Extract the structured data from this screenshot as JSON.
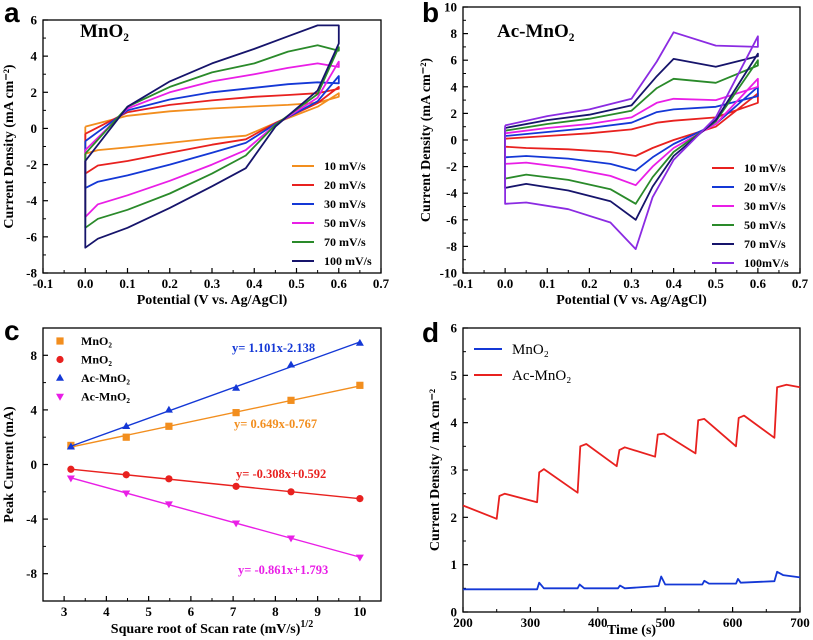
{
  "chart_data": [
    {
      "panel": "a",
      "type": "line",
      "title": "MnO₂",
      "xlabel": "Potential (V vs. Ag/AgCl)",
      "ylabel": "Current Density (mA cm⁻²)",
      "xlim": [
        -0.1,
        0.7
      ],
      "ylim": [
        -8,
        6
      ],
      "xticks": [
        "-0.1",
        "0.0",
        "0.1",
        "0.2",
        "0.3",
        "0.4",
        "0.5",
        "0.6",
        "0.7"
      ],
      "yticks": [
        "-8",
        "-6",
        "-4",
        "-2",
        "0",
        "2",
        "4",
        "6"
      ],
      "legend_position": "bottom-right",
      "series": [
        {
          "name": "10 mV/s",
          "color": "#f28e1e",
          "x": [
            0,
            0.1,
            0.2,
            0.3,
            0.4,
            0.48,
            0.55,
            0.6,
            0.6,
            0.55,
            0.45,
            0.38,
            0.3,
            0.2,
            0.1,
            0.03,
            0,
            0
          ],
          "y": [
            0.1,
            0.7,
            0.95,
            1.1,
            1.22,
            1.3,
            1.42,
            1.75,
            1.95,
            1.2,
            0.3,
            -0.4,
            -0.55,
            -0.8,
            -1.05,
            -1.2,
            -1.4,
            0.1
          ]
        },
        {
          "name": "20 mV/s",
          "color": "#e8211f",
          "x": [
            0,
            0.1,
            0.2,
            0.3,
            0.4,
            0.48,
            0.55,
            0.6,
            0.6,
            0.55,
            0.45,
            0.38,
            0.3,
            0.2,
            0.1,
            0.03,
            0,
            0
          ],
          "y": [
            -0.3,
            0.9,
            1.3,
            1.55,
            1.75,
            1.85,
            1.95,
            2.2,
            2.3,
            1.4,
            0.3,
            -0.6,
            -0.9,
            -1.35,
            -1.8,
            -2.05,
            -2.5,
            -0.3
          ]
        },
        {
          "name": "30 mV/s",
          "color": "#1438d6",
          "x": [
            0,
            0.1,
            0.2,
            0.3,
            0.4,
            0.48,
            0.55,
            0.6,
            0.6,
            0.55,
            0.45,
            0.38,
            0.3,
            0.2,
            0.1,
            0.03,
            0,
            0
          ],
          "y": [
            -0.7,
            1.0,
            1.6,
            2.0,
            2.25,
            2.45,
            2.55,
            2.5,
            2.9,
            1.5,
            0.25,
            -0.8,
            -1.35,
            -2.0,
            -2.6,
            -2.95,
            -3.3,
            -0.7
          ]
        },
        {
          "name": "50 mV/s",
          "color": "#e91ee6",
          "x": [
            0,
            0.1,
            0.2,
            0.3,
            0.4,
            0.48,
            0.55,
            0.6,
            0.6,
            0.55,
            0.45,
            0.38,
            0.3,
            0.2,
            0.1,
            0.03,
            0,
            0
          ],
          "y": [
            -1.2,
            1.1,
            2.0,
            2.6,
            3.0,
            3.35,
            3.6,
            3.4,
            3.7,
            1.7,
            0.2,
            -1.2,
            -2.0,
            -2.9,
            -3.7,
            -4.2,
            -4.9,
            -1.2
          ]
        },
        {
          "name": "70 mV/s",
          "color": "#2a8a2a",
          "x": [
            0,
            0.1,
            0.2,
            0.3,
            0.4,
            0.48,
            0.55,
            0.6,
            0.6,
            0.55,
            0.45,
            0.38,
            0.3,
            0.2,
            0.1,
            0.03,
            0,
            0
          ],
          "y": [
            -1.4,
            1.2,
            2.3,
            3.1,
            3.6,
            4.25,
            4.6,
            4.3,
            4.5,
            1.9,
            0.2,
            -1.5,
            -2.5,
            -3.6,
            -4.5,
            -5.0,
            -5.5,
            -1.4
          ]
        },
        {
          "name": "100 mV/s",
          "color": "#16146b",
          "x": [
            0,
            0.1,
            0.2,
            0.3,
            0.4,
            0.48,
            0.55,
            0.6,
            0.6,
            0.55,
            0.45,
            0.38,
            0.3,
            0.2,
            0.1,
            0.03,
            0,
            0
          ],
          "y": [
            -1.8,
            1.2,
            2.6,
            3.6,
            4.4,
            5.1,
            5.7,
            5.7,
            4.7,
            2.1,
            0.1,
            -2.2,
            -3.2,
            -4.4,
            -5.5,
            -6.1,
            -6.6,
            -1.8
          ]
        }
      ]
    },
    {
      "panel": "b",
      "type": "line",
      "title": "Ac-MnO₂",
      "xlabel": "Potential (V vs. Ag/AgCl)",
      "ylabel": "Current Density (mA cm⁻²)",
      "xlim": [
        -0.1,
        0.7
      ],
      "ylim": [
        -10,
        10
      ],
      "xticks": [
        "-0.1",
        "0.0",
        "0.1",
        "0.2",
        "0.3",
        "0.4",
        "0.5",
        "0.6",
        "0.7"
      ],
      "yticks": [
        "-10",
        "-8",
        "-6",
        "-4",
        "-2",
        "0",
        "2",
        "4",
        "6",
        "8",
        "10"
      ],
      "legend_position": "bottom-right",
      "series": [
        {
          "name": "10 mV/s",
          "color": "#e8211f",
          "x": [
            0,
            0.1,
            0.2,
            0.3,
            0.36,
            0.4,
            0.5,
            0.6,
            0.6,
            0.5,
            0.4,
            0.35,
            0.31,
            0.25,
            0.15,
            0.05,
            0,
            0
          ],
          "y": [
            0.1,
            0.3,
            0.5,
            0.8,
            1.3,
            1.45,
            1.7,
            2.8,
            3.5,
            1.0,
            0.0,
            -0.6,
            -1.2,
            -0.9,
            -0.7,
            -0.6,
            -0.5,
            0.1
          ]
        },
        {
          "name": "20 mV/s",
          "color": "#1438d6",
          "x": [
            0,
            0.1,
            0.2,
            0.3,
            0.36,
            0.4,
            0.5,
            0.6,
            0.6,
            0.5,
            0.4,
            0.35,
            0.31,
            0.25,
            0.15,
            0.05,
            0,
            0
          ],
          "y": [
            0.3,
            0.6,
            0.9,
            1.3,
            2.1,
            2.3,
            2.5,
            3.3,
            4.0,
            1.2,
            -0.3,
            -1.3,
            -2.3,
            -1.8,
            -1.4,
            -1.2,
            -1.3,
            0.3
          ]
        },
        {
          "name": "30 mV/s",
          "color": "#e91ee6",
          "x": [
            0,
            0.1,
            0.2,
            0.3,
            0.36,
            0.4,
            0.5,
            0.6,
            0.6,
            0.5,
            0.4,
            0.35,
            0.31,
            0.25,
            0.15,
            0.05,
            0,
            0
          ],
          "y": [
            0.5,
            0.9,
            1.2,
            1.7,
            2.8,
            3.1,
            3.0,
            4.0,
            4.6,
            1.2,
            -0.6,
            -2.0,
            -3.4,
            -2.7,
            -2.1,
            -1.7,
            -1.8,
            0.5
          ]
        },
        {
          "name": "50 mV/s",
          "color": "#2a8a2a",
          "x": [
            0,
            0.1,
            0.2,
            0.3,
            0.36,
            0.4,
            0.5,
            0.6,
            0.6,
            0.5,
            0.4,
            0.35,
            0.31,
            0.25,
            0.15,
            0.05,
            0,
            0
          ],
          "y": [
            0.7,
            1.2,
            1.6,
            2.2,
            3.9,
            4.6,
            4.3,
            5.6,
            6.0,
            1.4,
            -0.9,
            -2.8,
            -4.8,
            -3.7,
            -3.0,
            -2.6,
            -2.9,
            0.7
          ]
        },
        {
          "name": "70 mV/s",
          "color": "#16146b",
          "x": [
            0,
            0.1,
            0.2,
            0.3,
            0.36,
            0.4,
            0.5,
            0.6,
            0.6,
            0.5,
            0.4,
            0.35,
            0.31,
            0.25,
            0.15,
            0.05,
            0,
            0
          ],
          "y": [
            0.9,
            1.5,
            1.9,
            2.6,
            4.8,
            6.1,
            5.5,
            6.3,
            6.5,
            1.5,
            -1.2,
            -3.5,
            -6.0,
            -4.6,
            -3.8,
            -3.3,
            -3.6,
            0.9
          ]
        },
        {
          "name": "100mV/s",
          "color": "#8b2be2",
          "x": [
            0,
            0.1,
            0.2,
            0.3,
            0.36,
            0.4,
            0.5,
            0.6,
            0.6,
            0.5,
            0.4,
            0.35,
            0.31,
            0.25,
            0.15,
            0.05,
            0,
            0
          ],
          "y": [
            1.1,
            1.8,
            2.3,
            3.1,
            5.9,
            8.1,
            7.1,
            7.0,
            7.8,
            1.7,
            -1.5,
            -4.3,
            -8.2,
            -6.2,
            -5.2,
            -4.7,
            -4.8,
            1.1
          ]
        }
      ]
    },
    {
      "panel": "c",
      "type": "scatter",
      "xlabel": "Square root of Scan rate (mV/s)",
      "xlabel_sup": "1/2",
      "ylabel": "Peak Current (mA)",
      "xlim": [
        2.5,
        10.5
      ],
      "ylim": [
        -10,
        10
      ],
      "xticks": [
        "3",
        "4",
        "5",
        "6",
        "7",
        "8",
        "9",
        "10"
      ],
      "yticks": [
        "-8",
        "-4",
        "0",
        "4",
        "8"
      ],
      "legend_position": "top-left",
      "series": [
        {
          "name": "MnO₂",
          "marker": "square",
          "color": "#f28e1e",
          "x": [
            3.16,
            4.47,
            5.48,
            7.07,
            8.37,
            10.0
          ],
          "y": [
            1.4,
            2.0,
            2.8,
            3.8,
            4.7,
            5.8
          ],
          "fit": "y= 0.649x-0.767"
        },
        {
          "name": "MnO₂",
          "marker": "circle",
          "color": "#e8211f",
          "x": [
            3.16,
            4.47,
            5.48,
            7.07,
            8.37,
            10.0
          ],
          "y": [
            -0.35,
            -0.75,
            -1.05,
            -1.6,
            -2.0,
            -2.5
          ],
          "fit": "y= -0.308x+0.592"
        },
        {
          "name": "Ac-MnO₂",
          "marker": "triangle-up",
          "color": "#1438d6",
          "x": [
            3.16,
            4.47,
            5.48,
            7.07,
            8.37,
            10.0
          ],
          "y": [
            1.3,
            2.8,
            4.0,
            5.6,
            7.3,
            8.9
          ],
          "fit": "y= 1.101x-2.138"
        },
        {
          "name": "Ac-MnO₂",
          "marker": "triangle-down",
          "color": "#e91ee6",
          "x": [
            3.16,
            4.47,
            5.48,
            7.07,
            8.37,
            10.0
          ],
          "y": [
            -1.0,
            -2.1,
            -2.9,
            -4.3,
            -5.4,
            -6.8
          ],
          "fit": "y= -0.861x+1.793"
        }
      ]
    },
    {
      "panel": "d",
      "type": "line",
      "xlabel": "Time (s)",
      "ylabel": "Current Density / mA cm⁻²",
      "xlim": [
        200,
        700
      ],
      "ylim": [
        0,
        6
      ],
      "xticks": [
        "200",
        "300",
        "400",
        "500",
        "600",
        "700"
      ],
      "yticks": [
        "0",
        "1",
        "2",
        "3",
        "4",
        "5",
        "6"
      ],
      "legend_position": "top-left",
      "series": [
        {
          "name": "MnO₂",
          "color": "#1438d6",
          "x": [
            200,
            250,
            300,
            310,
            313,
            320,
            370,
            373,
            380,
            430,
            433,
            440,
            490,
            494,
            500,
            555,
            558,
            565,
            605,
            608,
            612,
            662,
            666,
            675,
            700
          ],
          "y": [
            0.48,
            0.48,
            0.48,
            0.48,
            0.62,
            0.5,
            0.5,
            0.58,
            0.5,
            0.5,
            0.56,
            0.5,
            0.55,
            0.75,
            0.58,
            0.58,
            0.66,
            0.6,
            0.6,
            0.7,
            0.62,
            0.65,
            0.85,
            0.78,
            0.73
          ]
        },
        {
          "name": "Ac-MnO₂",
          "color": "#e8211f",
          "x": [
            200,
            250,
            254,
            262,
            310,
            313,
            320,
            370,
            374,
            383,
            428,
            432,
            440,
            485,
            489,
            498,
            545,
            549,
            558,
            605,
            609,
            617,
            662,
            666,
            680,
            700
          ],
          "y": [
            2.25,
            1.97,
            2.45,
            2.5,
            2.32,
            2.95,
            3.02,
            2.52,
            3.5,
            3.55,
            3.08,
            3.42,
            3.48,
            3.28,
            3.75,
            3.77,
            3.35,
            4.05,
            4.08,
            3.5,
            4.1,
            4.15,
            3.68,
            4.75,
            4.8,
            4.75
          ]
        }
      ]
    }
  ]
}
